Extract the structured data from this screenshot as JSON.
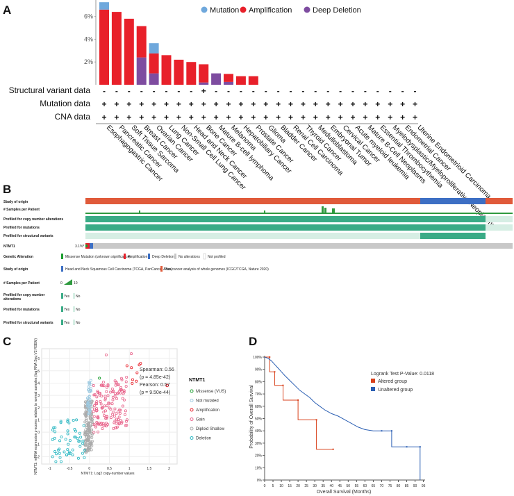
{
  "panels": {
    "a": "A",
    "b": "B",
    "c": "C",
    "d": "D"
  },
  "chart_data": [
    {
      "type": "bar",
      "panel": "A",
      "title": "",
      "ylim": [
        0,
        7.2
      ],
      "yticks": [
        "2%",
        "4%",
        "6%"
      ],
      "legend": [
        {
          "name": "Mutation",
          "color": "#6fa8dc"
        },
        {
          "name": "Amplification",
          "color": "#e8202a"
        },
        {
          "name": "Deep Deletion",
          "color": "#7e4ca0"
        }
      ],
      "categories": [
        "Esophagogastric Cancer",
        "Pancreatic Cancer",
        "Soft Tissue Sarcoma",
        "Breast Cancer",
        "Ovarian Cancer",
        "Lung Cancer",
        "Non-Small Cell Lung Cancer",
        "Head and Neck Cancer",
        "Bone Cancer",
        "Mature B-cell lymphoma",
        "Melanoma",
        "Hepatobiliary Cancer",
        "Prostate Cancer",
        "Glioma",
        "Bladder Cancer",
        "Renal Cell Carcinoma",
        "Thyroid Cancer",
        "Medulloblastoma",
        "Embryonal Tumor",
        "Cervical Cancer",
        "Acute myeloid leukemia",
        "Mature B-Cell Neoplasms",
        "Essential Thrombocythemia",
        "Myelodysplastic/Myeloproliferative Neoplasms",
        "Endometrial Cancer",
        "Uterine Endometrioid Carcinoma"
      ],
      "series": [
        {
          "name": "Deep Deletion",
          "values": [
            0,
            0,
            0,
            2.4,
            1.0,
            0,
            0,
            0,
            0.2,
            1.0,
            0.25,
            0,
            0,
            0,
            0,
            0,
            0,
            0,
            0,
            0,
            0,
            0,
            0,
            0,
            0,
            0
          ]
        },
        {
          "name": "Amplification",
          "values": [
            6.6,
            6.4,
            5.8,
            2.75,
            1.75,
            2.6,
            2.2,
            2.0,
            1.6,
            0,
            0.7,
            0.75,
            0.75,
            0,
            0,
            0,
            0,
            0,
            0,
            0,
            0,
            0,
            0,
            0,
            0,
            0
          ]
        },
        {
          "name": "Mutation",
          "values": [
            0.65,
            0,
            0,
            0,
            0.9,
            0,
            0,
            0,
            0,
            0,
            0,
            0,
            0,
            0,
            0,
            0,
            0,
            0,
            0,
            0,
            0,
            0,
            0,
            0,
            0,
            0
          ]
        }
      ],
      "profile_rows": [
        {
          "label": "Structural variant data",
          "marks": [
            "-",
            "-",
            "-",
            "-",
            "-",
            "-",
            "-",
            "-",
            "+",
            "-",
            "-",
            "-",
            "-",
            "-",
            "-",
            "-",
            "-",
            "-",
            "-",
            "-",
            "-",
            "-",
            "-",
            "-",
            "-",
            "-"
          ]
        },
        {
          "label": "Mutation data",
          "marks": [
            "+",
            "+",
            "+",
            "+",
            "+",
            "+",
            "+",
            "+",
            "+",
            "+",
            "+",
            "+",
            "+",
            "+",
            "+",
            "+",
            "+",
            "+",
            "+",
            "+",
            "+",
            "+",
            "+",
            "+",
            "+",
            "+"
          ]
        },
        {
          "label": "CNA data",
          "marks": [
            "+",
            "+",
            "+",
            "+",
            "+",
            "+",
            "+",
            "+",
            "+",
            "+",
            "+",
            "+",
            "+",
            "+",
            "+",
            "+",
            "+",
            "+",
            "+",
            "+",
            "+",
            "+",
            "+",
            "+",
            "+",
            "+"
          ]
        }
      ]
    },
    {
      "type": "table",
      "panel": "B",
      "track_labels": [
        "Study of origin",
        "# Samples per Patient",
        "Profiled for copy number alterations",
        "Profiled for mutations",
        "Profiled for structural variants"
      ],
      "gene": "NTMT1",
      "gene_pct": "3.1%*",
      "legend": {
        "genetic_alteration": {
          "label": "Genetic Alteration",
          "items": [
            "Missense Mutation (unknown significance)",
            "Amplification",
            "Deep Deletion",
            "No alterations",
            "Not profiled"
          ]
        },
        "study_of_origin": {
          "label": "Study of origin",
          "items": [
            "Head and Neck Squamous Cell Carcinoma (TCGA, PanCancer Atlas)",
            "Pan-cancer analysis of whole genomes (ICGC/TCGA, Nature 2020)"
          ]
        },
        "samples": {
          "label": "# Samples per Patient",
          "min": "0",
          "max": "10"
        },
        "profiled_cna": {
          "label": "Profiled for copy number alterations",
          "yes": "Yes",
          "no": "No"
        },
        "profiled_mut": {
          "label": "Profiled for mutations",
          "yes": "Yes",
          "no": "No"
        },
        "profiled_sv": {
          "label": "Profiled for structural variants",
          "yes": "Yes",
          "no": "No"
        }
      }
    },
    {
      "type": "scatter",
      "panel": "C",
      "xlabel": "NTMT1: Log2 copy-number values",
      "ylabel": "NTMT1: mRNA expression z-scores relative to normal samples (log RNA Seq V2 RSEM)",
      "xlim": [
        -1.2,
        2.2
      ],
      "ylim": [
        -2.6,
        6.8
      ],
      "xticks": [
        "-1",
        "-0.5",
        "0",
        "0.5",
        "1",
        "1.5",
        "2"
      ],
      "yticks": [
        "-2",
        "-1",
        "0",
        "1",
        "2",
        "3",
        "4",
        "5",
        "6"
      ],
      "stats": [
        "Spearman: 0.56",
        "(p = 4.85e-42)",
        "Pearson: 0.57",
        "(p = 9.50e-44)"
      ],
      "legend_title": "NTMT1",
      "legend": [
        {
          "name": "Missense (VUS)",
          "color": "#1a9e2e"
        },
        {
          "name": "Not mutated",
          "color": "#9ecae1"
        },
        {
          "name": "Amplification",
          "color": "#e8202a"
        },
        {
          "name": "Gain",
          "color": "#e8638a"
        },
        {
          "name": "Diploid Shallow",
          "color": "#aaaaaa"
        },
        {
          "name": "Deletion",
          "color": "#2ab7c2"
        }
      ]
    },
    {
      "type": "line",
      "panel": "D",
      "xlabel": "Overall Survival (Months)",
      "ylabel": "Probability of Overall Survival",
      "xlim": [
        0,
        96
      ],
      "ylim": [
        0,
        100
      ],
      "xticks": [
        "0",
        "5",
        "10",
        "15",
        "20",
        "25",
        "30",
        "35",
        "40",
        "45",
        "50",
        "55",
        "60",
        "65",
        "70",
        "75",
        "80",
        "85",
        "90",
        "95"
      ],
      "yticks": [
        "0%",
        "10%",
        "20%",
        "30%",
        "40%",
        "50%",
        "60%",
        "70%",
        "80%",
        "90%",
        "100%"
      ],
      "pvalue_text": "Logrank Test P-Value: 0.0118",
      "series": [
        {
          "name": "Altered group",
          "color": "#d9421c",
          "x": [
            0,
            3,
            3,
            6,
            6,
            11,
            11,
            20,
            20,
            31,
            31,
            41
          ],
          "y": [
            100,
            100,
            88,
            88,
            77,
            77,
            65,
            65,
            49,
            49,
            25,
            25
          ]
        },
        {
          "name": "Unaltered group",
          "color": "#2b5fb3",
          "x": [
            0,
            2,
            4,
            6,
            8,
            10,
            12,
            15,
            18,
            21,
            24,
            27,
            30,
            33,
            36,
            40,
            44,
            48,
            52,
            56,
            60,
            65,
            70,
            76,
            76,
            85,
            93,
            93
          ],
          "y": [
            100,
            99,
            97,
            94,
            91,
            88,
            85,
            81,
            77,
            73,
            70,
            67,
            63,
            60,
            57,
            54,
            52,
            49,
            46,
            43,
            41,
            40,
            40,
            40,
            27,
            27,
            27,
            0
          ]
        }
      ]
    }
  ]
}
